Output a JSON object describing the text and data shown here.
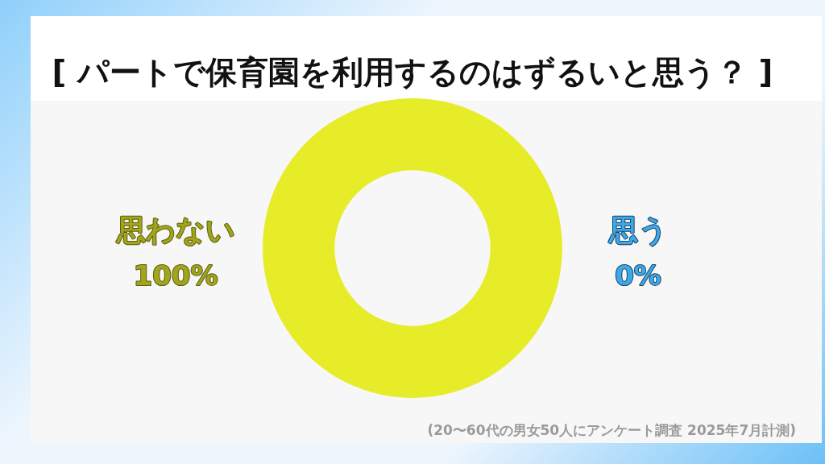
{
  "chart_data": {
    "type": "donut",
    "title": "[ パートで保育園を利用するのはずるいと思う？ ]",
    "categories": [
      "思わない",
      "思う"
    ],
    "values": [
      100,
      0
    ],
    "colors": [
      "#e6ec28",
      "#3ea8ec"
    ],
    "value_labels": [
      "100%",
      "0%"
    ],
    "annotations": [
      "(20〜60代の男女50人にアンケート調査 2025年7月計測)"
    ]
  }
}
